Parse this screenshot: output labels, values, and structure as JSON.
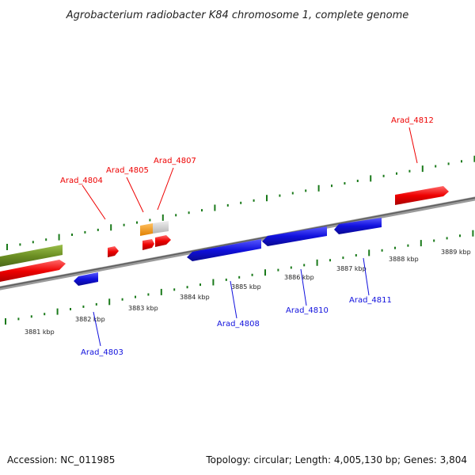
{
  "title": "Agrobacterium radiobacter K84 chromosome 1, complete genome",
  "footer": {
    "accession": "Accession: NC_011985",
    "summary": "Topology: circular; Length: 4,005,130 bp; Genes: 3,804"
  },
  "colors": {
    "forward": "#ee0000",
    "reverse": "#1010dd",
    "rna": "#6b8e23",
    "orange": "#f49a10",
    "gray": "#cfcfcf",
    "ticks": "#1a7a1a"
  },
  "scale_ticks": [
    "3881 kbp",
    "3882 kbp",
    "3883 kbp",
    "3884 kbp",
    "3885 kbp",
    "3886 kbp",
    "3887 kbp",
    "3888 kbp",
    "3889 kbp"
  ],
  "gene_labels": {
    "Arad_4812": "Arad_4812",
    "Arad_4804": "Arad_4804",
    "Arad_4805": "Arad_4805",
    "Arad_4807": "Arad_4807",
    "Arad_4803": "Arad_4803",
    "Arad_4808": "Arad_4808",
    "Arad_4810": "Arad_4810",
    "Arad_4811": "Arad_4811"
  }
}
